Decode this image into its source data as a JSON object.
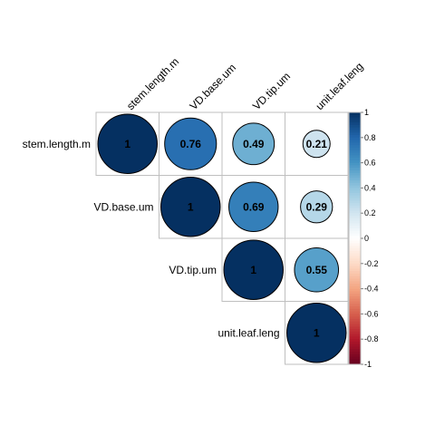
{
  "chart_data": {
    "type": "heatmap",
    "subtype": "correlation-matrix-upper-circles",
    "variables": [
      "stem.length.m",
      "VD.base.um",
      "VD.tip.um",
      "unit.leaf.leng"
    ],
    "matrix": [
      [
        1,
        0.76,
        0.49,
        0.21
      ],
      [
        null,
        1,
        0.69,
        0.29
      ],
      [
        null,
        null,
        1,
        0.55
      ],
      [
        null,
        null,
        null,
        1
      ]
    ],
    "labels": [
      [
        "1",
        "0.76",
        "0.49",
        "0.21"
      ],
      [
        "",
        "1",
        "0.69",
        "0.29"
      ],
      [
        "",
        "",
        "1",
        "0.55"
      ],
      [
        "",
        "",
        "",
        "1"
      ]
    ],
    "colorbar": {
      "range": [
        -1,
        1
      ],
      "ticks": [
        "1",
        "0.8",
        "0.6",
        "0.4",
        "0.2",
        "0",
        "-0.2",
        "-0.4",
        "-0.6",
        "-0.8",
        "-1"
      ],
      "tick_values": [
        1,
        0.8,
        0.6,
        0.4,
        0.2,
        0,
        -0.2,
        -0.4,
        -0.6,
        -0.8,
        -1
      ],
      "placement": "right",
      "colors": [
        "#67001F",
        "#B2182B",
        "#D6604D",
        "#F4A582",
        "#FDDBC7",
        "#FFFFFF",
        "#D1E5F0",
        "#92C5DE",
        "#4393C3",
        "#2166AC",
        "#053061"
      ]
    },
    "title": "",
    "xlabel": "",
    "ylabel": "",
    "grid": true
  }
}
